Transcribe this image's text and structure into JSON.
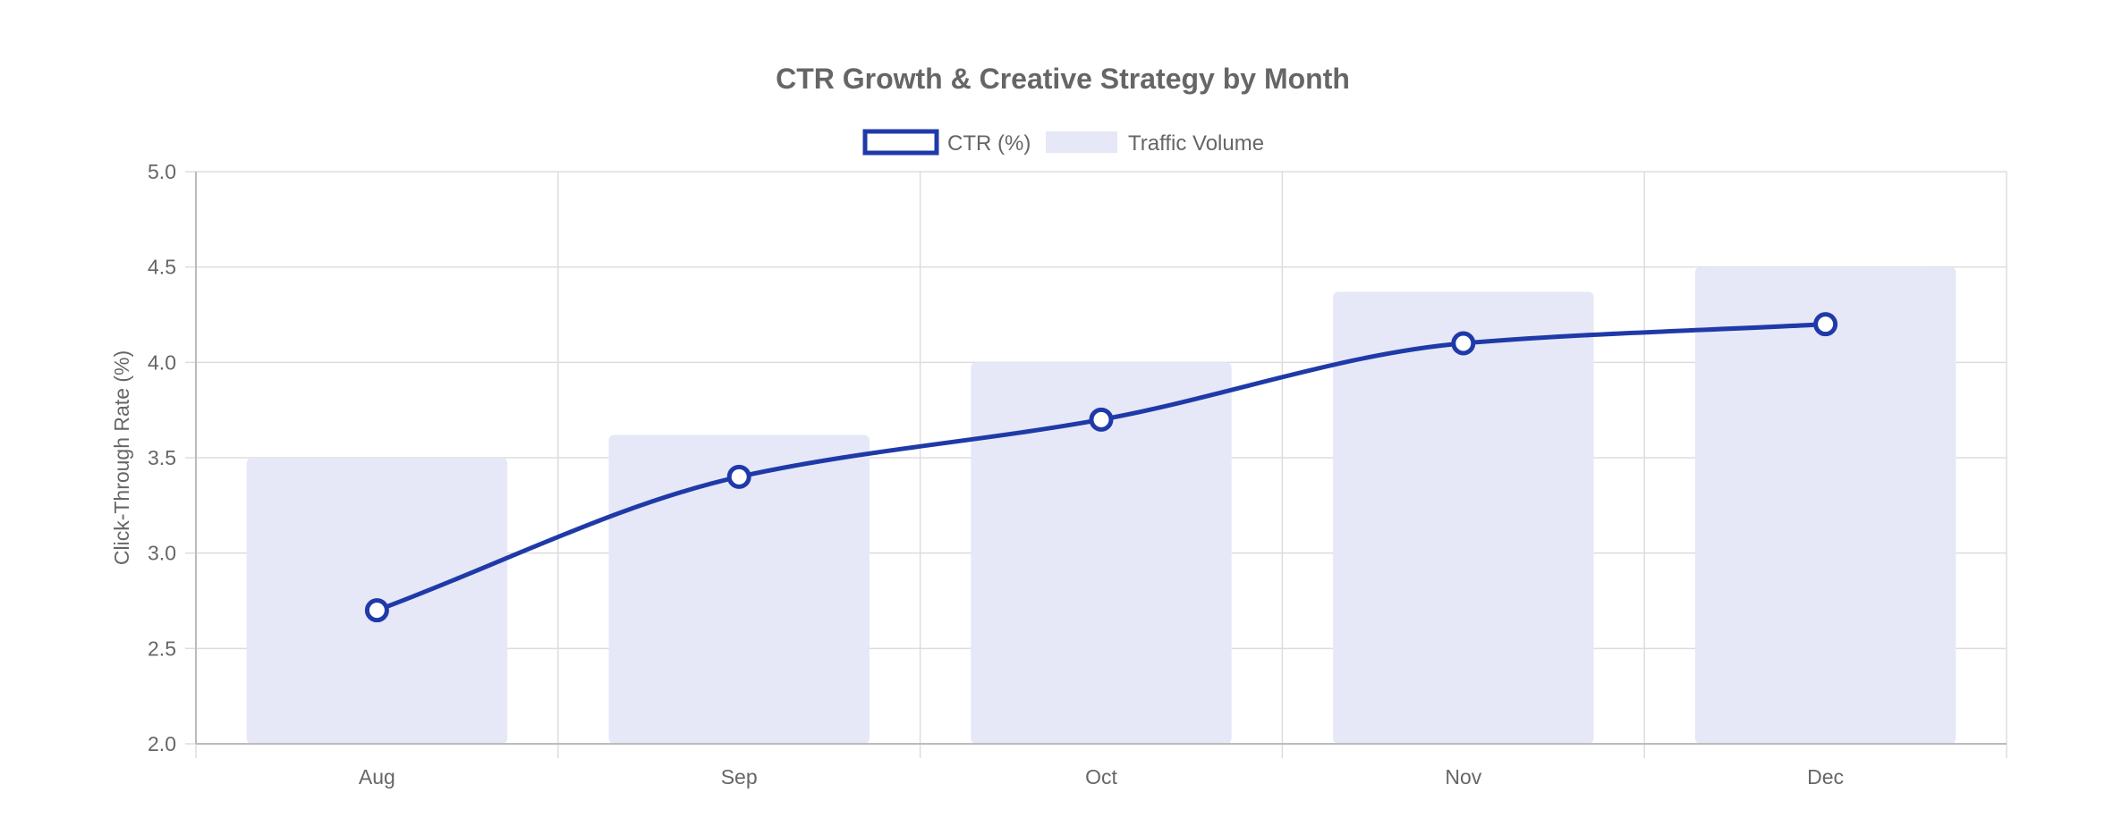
{
  "chart_data": {
    "type": "bar",
    "title": "CTR Growth & Creative Strategy by Month",
    "categories": [
      "Aug",
      "Sep",
      "Oct",
      "Nov",
      "Dec"
    ],
    "ylabel": "Click-Through Rate (%)",
    "xlabel": "",
    "ylim": [
      2.0,
      5.0
    ],
    "yticks": [
      "2.0",
      "2.5",
      "3.0",
      "3.5",
      "4.0",
      "4.5",
      "5.0"
    ],
    "grid": true,
    "legend_position": "top",
    "series": [
      {
        "name": "CTR (%)",
        "type": "line",
        "values": [
          2.7,
          3.4,
          3.7,
          4.1,
          4.2
        ],
        "color": "#1f3aa8",
        "marker_fill": "#ffffff",
        "smooth": true
      },
      {
        "name": "Traffic Volume",
        "type": "bar",
        "values": [
          3.5,
          3.62,
          4.0,
          4.37,
          4.5
        ],
        "color": "#e6e8f7"
      }
    ],
    "colors": {
      "text": "#666666",
      "grid": "#dddddd",
      "axis": "#bbbbbb"
    }
  }
}
